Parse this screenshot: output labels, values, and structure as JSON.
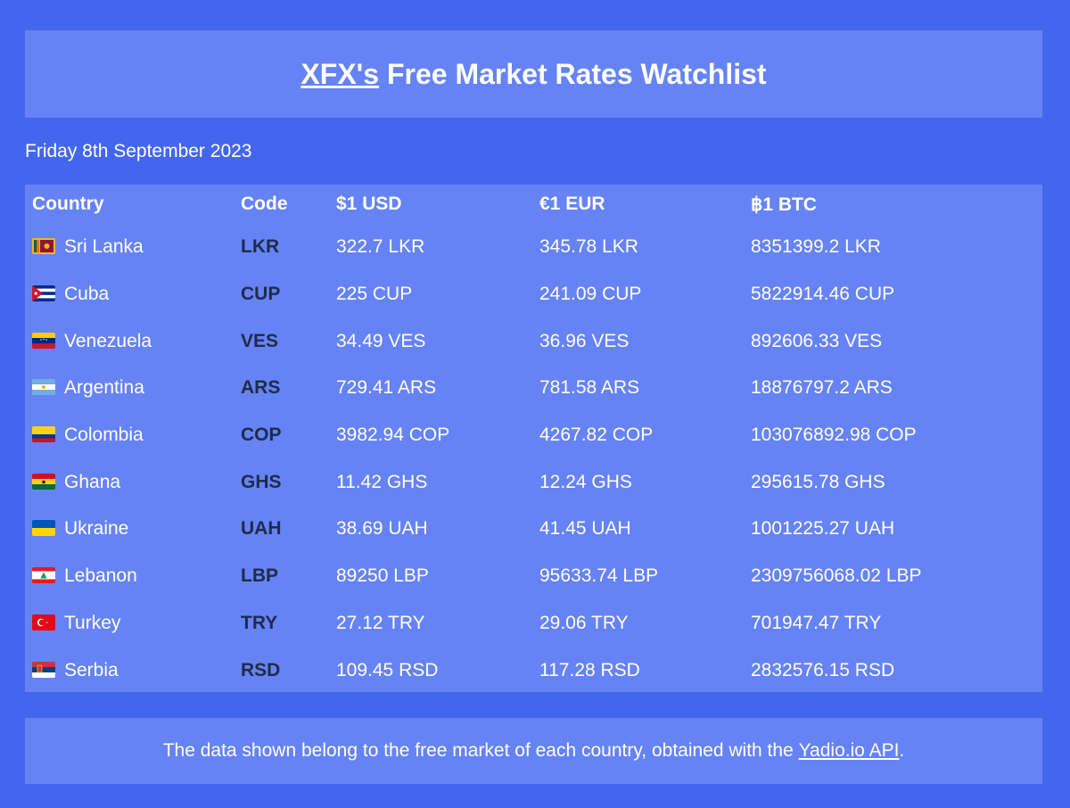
{
  "header": {
    "owner": "XFX's",
    "title_rest": " Free Market Rates Watchlist"
  },
  "date": "Friday 8th September 2023",
  "table": {
    "headers": [
      "Country",
      "Code",
      "$1 USD",
      "€1 EUR",
      "฿1 BTC"
    ],
    "rows": [
      {
        "flag": "sri-lanka-flag",
        "country": "Sri Lanka",
        "code": "LKR",
        "usd": "322.7 LKR",
        "eur": "345.78 LKR",
        "btc": "8351399.2 LKR"
      },
      {
        "flag": "cuba-flag",
        "country": "Cuba",
        "code": "CUP",
        "usd": "225 CUP",
        "eur": "241.09 CUP",
        "btc": "5822914.46 CUP"
      },
      {
        "flag": "venezuela-flag",
        "country": "Venezuela",
        "code": "VES",
        "usd": "34.49 VES",
        "eur": "36.96 VES",
        "btc": "892606.33 VES"
      },
      {
        "flag": "argentina-flag",
        "country": "Argentina",
        "code": "ARS",
        "usd": "729.41 ARS",
        "eur": "781.58 ARS",
        "btc": "18876797.2 ARS"
      },
      {
        "flag": "colombia-flag",
        "country": "Colombia",
        "code": "COP",
        "usd": "3982.94 COP",
        "eur": "4267.82 COP",
        "btc": "103076892.98 COP"
      },
      {
        "flag": "ghana-flag",
        "country": "Ghana",
        "code": "GHS",
        "usd": "11.42 GHS",
        "eur": "12.24 GHS",
        "btc": "295615.78 GHS"
      },
      {
        "flag": "ukraine-flag",
        "country": "Ukraine",
        "code": "UAH",
        "usd": "38.69 UAH",
        "eur": "41.45 UAH",
        "btc": "1001225.27 UAH"
      },
      {
        "flag": "lebanon-flag",
        "country": "Lebanon",
        "code": "LBP",
        "usd": "89250 LBP",
        "eur": "95633.74 LBP",
        "btc": "2309756068.02 LBP"
      },
      {
        "flag": "turkey-flag",
        "country": "Turkey",
        "code": "TRY",
        "usd": "27.12 TRY",
        "eur": "29.06 TRY",
        "btc": "701947.47 TRY"
      },
      {
        "flag": "serbia-flag",
        "country": "Serbia",
        "code": "RSD",
        "usd": "109.45 RSD",
        "eur": "117.28 RSD",
        "btc": "2832576.15 RSD"
      }
    ]
  },
  "footer": {
    "text_before": "The data shown belong to the free market of each country, obtained with the ",
    "link": "Yadio.io API",
    "text_after": "."
  },
  "colors": {
    "background": "#4466ee",
    "panel": "#6683f5",
    "code_text": "#1e2b4a",
    "text": "#ffffff"
  }
}
